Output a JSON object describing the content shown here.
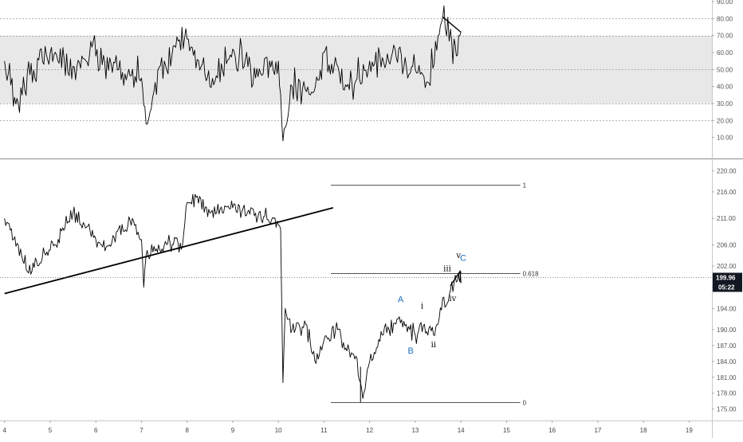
{
  "chart_data": [
    {
      "type": "line",
      "panel": "oscillator",
      "ylim": [
        0,
        90
      ],
      "yticks": [
        "10.00",
        "20.00",
        "30.00",
        "40.00",
        "50.00",
        "60.00",
        "70.00",
        "80.00",
        "90.00"
      ],
      "band": [
        30,
        70
      ],
      "dotted_levels": [
        20,
        30,
        50,
        70,
        80
      ],
      "series_hint": {
        "x": [
          4.0,
          4.3,
          4.5,
          5.0,
          5.5,
          6.0,
          6.5,
          7.0,
          7.1,
          7.5,
          8.0,
          8.5,
          9.0,
          9.5,
          10.0,
          10.1,
          10.3,
          10.7,
          11.0,
          11.5,
          12.0,
          12.5,
          13.0,
          13.3,
          13.5,
          13.6,
          13.8,
          13.9,
          14.0
        ],
        "y": [
          55,
          30,
          48,
          60,
          52,
          58,
          50,
          45,
          18,
          55,
          68,
          40,
          62,
          45,
          55,
          8,
          40,
          35,
          60,
          40,
          55,
          60,
          50,
          42,
          70,
          80,
          66,
          58,
          72
        ]
      },
      "trendline": {
        "x": [
          13.6,
          14.0
        ],
        "y": [
          81,
          72
        ]
      },
      "colors": {
        "line": "#000000",
        "band": "#e8e8e8",
        "band_border": "#999999"
      }
    },
    {
      "type": "line",
      "panel": "price",
      "ylim": [
        173,
        222
      ],
      "yticks": [
        "175.00",
        "178.00",
        "181.00",
        "184.00",
        "187.00",
        "190.00",
        "194.00",
        "198.00",
        "202.00",
        "206.00",
        "211.00",
        "216.00",
        "220.00"
      ],
      "x_ticks": [
        "4",
        "5",
        "6",
        "7",
        "8",
        "9",
        "10",
        "11",
        "12",
        "13",
        "14",
        "15",
        "16",
        "17",
        "18",
        "19"
      ],
      "series_hint": {
        "x": [
          4.0,
          4.1,
          4.3,
          4.5,
          5.0,
          5.5,
          6.0,
          6.3,
          6.8,
          7.0,
          7.05,
          7.1,
          7.5,
          7.9,
          8.0,
          8.2,
          8.5,
          9.0,
          9.5,
          9.9,
          10.05,
          10.1,
          10.15,
          10.3,
          10.6,
          10.8,
          11.0,
          11.3,
          11.5,
          11.7,
          11.8,
          11.85,
          12.0,
          12.3,
          12.6,
          12.8,
          13.0,
          13.2,
          13.4,
          13.5,
          13.6,
          13.7,
          13.8,
          13.9,
          14.0
        ],
        "y": [
          211,
          210,
          206,
          201,
          205,
          212,
          207,
          206,
          211,
          207,
          198,
          204,
          206,
          206,
          214,
          215,
          212,
          213,
          212,
          211,
          209,
          180,
          194,
          190,
          191,
          184,
          188,
          190,
          186,
          185,
          180,
          177,
          184,
          189,
          192,
          191,
          189,
          191,
          189,
          191,
          196,
          195,
          199,
          199,
          201
        ]
      },
      "trendline": {
        "x": [
          4.0,
          11.2
        ],
        "y": [
          196.8,
          213.0
        ]
      },
      "fibonacci": {
        "x_start": 11.15,
        "x_end": 15.3,
        "levels": [
          {
            "label": "1",
            "value": 217.3
          },
          {
            "label": "0.618",
            "value": 200.7
          },
          {
            "label": "0",
            "value": 176.3
          }
        ]
      },
      "wave_labels": [
        {
          "text": "A",
          "x": 12.68,
          "y": 195.2,
          "color": "#1f6fbf"
        },
        {
          "text": "B",
          "x": 12.9,
          "y": 185.5,
          "color": "#1f6fbf"
        },
        {
          "text": "C",
          "x": 14.05,
          "y": 203.0,
          "color": "#1f6fbf"
        },
        {
          "text": "i",
          "x": 13.15,
          "y": 194.0,
          "color": "#000000"
        },
        {
          "text": "ii",
          "x": 13.4,
          "y": 186.7,
          "color": "#000000"
        },
        {
          "text": "iii",
          "x": 13.7,
          "y": 201.0,
          "color": "#000000"
        },
        {
          "text": "iv",
          "x": 13.82,
          "y": 195.4,
          "color": "#000000"
        },
        {
          "text": "v",
          "x": 13.95,
          "y": 203.5,
          "color": "#000000"
        }
      ],
      "current_price": "199.96",
      "countdown": "05:22",
      "colors": {
        "line": "#000000",
        "price_tag": "#131722"
      }
    }
  ]
}
